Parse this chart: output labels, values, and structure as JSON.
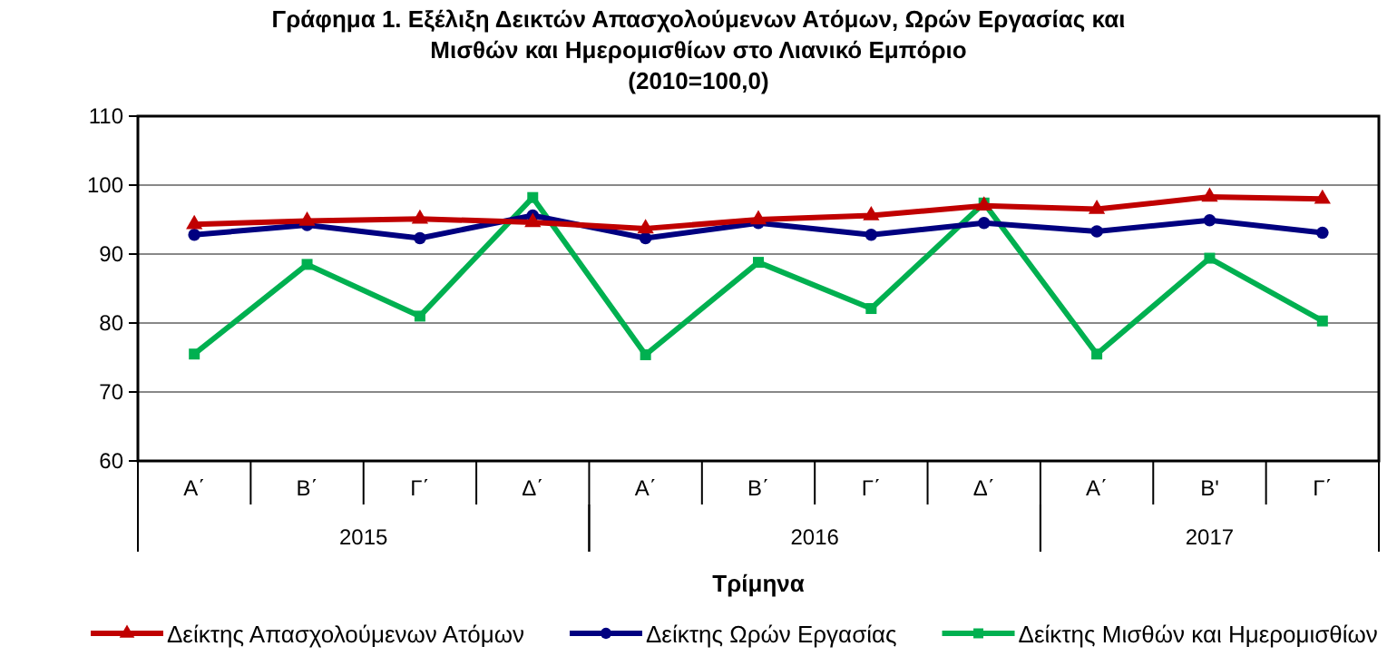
{
  "chart_data": {
    "type": "line",
    "title": "Γράφημα  1. Εξέλιξη Δεικτών Απασχολούμενων Ατόμων, Ωρών Εργασίας και Μισθών και Ημερομισθίων στο Λιανικό Εμπόριο",
    "subtitle": "(2010=100,0)",
    "xlabel": "Τρίμηνα",
    "categories": [
      "Α΄",
      "Β΄",
      "Γ΄",
      "Δ΄",
      "Α΄",
      "Β΄",
      "Γ΄",
      "Δ΄",
      "Α΄",
      "Β'",
      "Γ΄"
    ],
    "annotations": [
      "2015",
      "2016",
      "2017"
    ],
    "series": [
      {
        "name": "Δείκτης Απασχολούμενων Ατόμων",
        "color": "#c00000",
        "marker": "triangle",
        "values": [
          94.3,
          94.8,
          95.1,
          94.6,
          93.7,
          95.0,
          95.6,
          97.0,
          96.5,
          98.3,
          98.0
        ]
      },
      {
        "name": "Δείκτης Ωρών Εργασίας",
        "color": "#000080",
        "marker": "circle",
        "values": [
          92.8,
          94.2,
          92.3,
          95.6,
          92.3,
          94.5,
          92.8,
          94.5,
          93.3,
          94.9,
          93.1
        ]
      },
      {
        "name": "Δείκτης Μισθών και Ημερομισθίων",
        "color": "#00b050",
        "marker": "square",
        "values": [
          75.5,
          88.5,
          81.0,
          98.2,
          75.4,
          88.8,
          82.1,
          97.4,
          75.5,
          89.4,
          80.3
        ]
      }
    ],
    "ylim": [
      60,
      110
    ],
    "yticks": [
      60,
      70,
      80,
      90,
      100,
      110
    ],
    "grid": "y",
    "legend": "bottom",
    "line_style": "solid"
  }
}
